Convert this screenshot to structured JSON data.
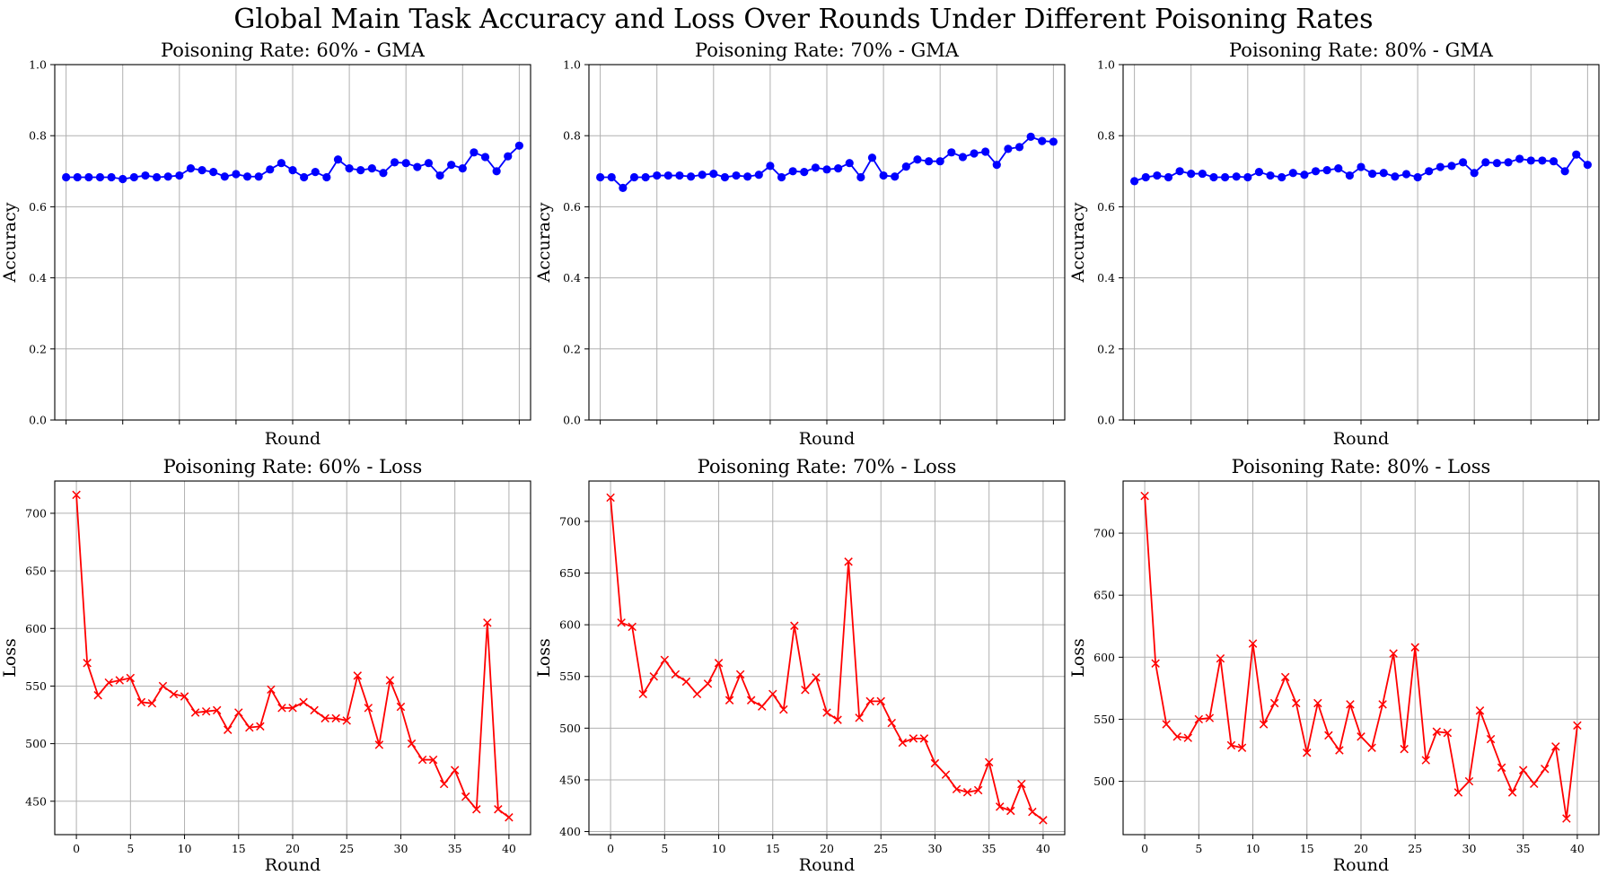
{
  "suptitle": "Global Main Task Accuracy and Loss Over Rounds Under Different Poisoning Rates",
  "colors": {
    "accuracy": "#0000ff",
    "loss": "#ff0000",
    "grid": "#b0b0b0"
  },
  "chart_data": [
    {
      "type": "line",
      "title": "Poisoning Rate: 60% - GMA",
      "xlabel": "Round",
      "ylabel": "Accuracy",
      "xlim": [
        -1,
        41
      ],
      "ylim": [
        0.0,
        1.0
      ],
      "xticks": [
        0,
        5,
        10,
        15,
        20,
        25,
        30,
        35,
        40
      ],
      "xtick_labels_shown": false,
      "yticks": [
        0.0,
        0.2,
        0.4,
        0.6,
        0.8,
        1.0
      ],
      "ytick_labels": [
        "0.0",
        "0.2",
        "0.4",
        "0.6",
        "0.8",
        "1.0"
      ],
      "marker": "circle",
      "color": "#0000ff",
      "grid": true,
      "x": [
        0,
        1,
        2,
        3,
        4,
        5,
        6,
        7,
        8,
        9,
        10,
        11,
        12,
        13,
        14,
        15,
        16,
        17,
        18,
        19,
        20,
        21,
        22,
        23,
        24,
        25,
        26,
        27,
        28,
        29,
        30,
        31,
        32,
        33,
        34,
        35,
        36,
        37,
        38,
        39,
        40
      ],
      "y": [
        0.683,
        0.683,
        0.683,
        0.683,
        0.683,
        0.678,
        0.683,
        0.688,
        0.683,
        0.685,
        0.688,
        0.708,
        0.703,
        0.698,
        0.685,
        0.692,
        0.685,
        0.685,
        0.705,
        0.723,
        0.703,
        0.683,
        0.698,
        0.683,
        0.733,
        0.708,
        0.703,
        0.708,
        0.695,
        0.725,
        0.723,
        0.712,
        0.723,
        0.688,
        0.718,
        0.708,
        0.753,
        0.74,
        0.7,
        0.742,
        0.772
      ]
    },
    {
      "type": "line",
      "title": "Poisoning Rate: 70% - GMA",
      "xlabel": "Round",
      "ylabel": "Accuracy",
      "xlim": [
        -1,
        41
      ],
      "ylim": [
        0.0,
        1.0
      ],
      "xticks": [
        0,
        5,
        10,
        15,
        20,
        25,
        30,
        35,
        40
      ],
      "xtick_labels_shown": false,
      "yticks": [
        0.0,
        0.2,
        0.4,
        0.6,
        0.8,
        1.0
      ],
      "ytick_labels": [
        "0.0",
        "0.2",
        "0.4",
        "0.6",
        "0.8",
        "1.0"
      ],
      "marker": "circle",
      "color": "#0000ff",
      "grid": true,
      "x": [
        0,
        1,
        2,
        3,
        4,
        5,
        6,
        7,
        8,
        9,
        10,
        11,
        12,
        13,
        14,
        15,
        16,
        17,
        18,
        19,
        20,
        21,
        22,
        23,
        24,
        25,
        26,
        27,
        28,
        29,
        30,
        31,
        32,
        33,
        34,
        35,
        36,
        37,
        38,
        39,
        40
      ],
      "y": [
        0.683,
        0.683,
        0.653,
        0.683,
        0.683,
        0.688,
        0.688,
        0.688,
        0.685,
        0.69,
        0.693,
        0.683,
        0.688,
        0.685,
        0.69,
        0.715,
        0.683,
        0.7,
        0.698,
        0.71,
        0.705,
        0.708,
        0.723,
        0.683,
        0.738,
        0.688,
        0.685,
        0.713,
        0.733,
        0.728,
        0.728,
        0.753,
        0.74,
        0.75,
        0.755,
        0.718,
        0.763,
        0.768,
        0.797,
        0.785,
        0.783
      ]
    },
    {
      "type": "line",
      "title": "Poisoning Rate: 80% - GMA",
      "xlabel": "Round",
      "ylabel": "Accuracy",
      "xlim": [
        -1,
        41
      ],
      "ylim": [
        0.0,
        1.0
      ],
      "xticks": [
        0,
        5,
        10,
        15,
        20,
        25,
        30,
        35,
        40
      ],
      "xtick_labels_shown": false,
      "yticks": [
        0.0,
        0.2,
        0.4,
        0.6,
        0.8,
        1.0
      ],
      "ytick_labels": [
        "0.0",
        "0.2",
        "0.4",
        "0.6",
        "0.8",
        "1.0"
      ],
      "marker": "circle",
      "color": "#0000ff",
      "grid": true,
      "x": [
        0,
        1,
        2,
        3,
        4,
        5,
        6,
        7,
        8,
        9,
        10,
        11,
        12,
        13,
        14,
        15,
        16,
        17,
        18,
        19,
        20,
        21,
        22,
        23,
        24,
        25,
        26,
        27,
        28,
        29,
        30,
        31,
        32,
        33,
        34,
        35,
        36,
        37,
        38,
        39,
        40
      ],
      "y": [
        0.672,
        0.683,
        0.688,
        0.683,
        0.7,
        0.693,
        0.693,
        0.683,
        0.683,
        0.685,
        0.683,
        0.698,
        0.688,
        0.683,
        0.695,
        0.69,
        0.7,
        0.703,
        0.708,
        0.688,
        0.712,
        0.693,
        0.695,
        0.685,
        0.692,
        0.683,
        0.7,
        0.712,
        0.715,
        0.725,
        0.695,
        0.725,
        0.723,
        0.725,
        0.735,
        0.73,
        0.73,
        0.728,
        0.7,
        0.747,
        0.718
      ]
    },
    {
      "type": "line",
      "title": "Poisoning Rate: 60% - Loss",
      "xlabel": "Round",
      "ylabel": "Loss",
      "xlim": [
        -2,
        42
      ],
      "ylim": [
        421,
        728
      ],
      "xticks": [
        0,
        5,
        10,
        15,
        20,
        25,
        30,
        35,
        40
      ],
      "xtick_labels": [
        "0",
        "5",
        "10",
        "15",
        "20",
        "25",
        "30",
        "35",
        "40"
      ],
      "yticks": [
        450,
        500,
        550,
        600,
        650,
        700
      ],
      "ytick_labels": [
        "450",
        "500",
        "550",
        "600",
        "650",
        "700"
      ],
      "marker": "x",
      "color": "#ff0000",
      "grid": true,
      "x": [
        0,
        1,
        2,
        3,
        4,
        5,
        6,
        7,
        8,
        9,
        10,
        11,
        12,
        13,
        14,
        15,
        16,
        17,
        18,
        19,
        20,
        21,
        22,
        23,
        24,
        25,
        26,
        27,
        28,
        29,
        30,
        31,
        32,
        33,
        34,
        35,
        36,
        37,
        38,
        39,
        40
      ],
      "y": [
        716,
        570,
        542,
        553,
        555,
        557,
        536,
        535,
        550,
        543,
        541,
        527,
        528,
        529,
        512,
        527,
        514,
        515,
        547,
        531,
        531,
        536,
        529,
        522,
        522,
        520,
        559,
        531,
        499,
        555,
        532,
        500,
        486,
        486,
        465,
        477,
        454,
        443,
        605,
        443,
        436
      ]
    },
    {
      "type": "line",
      "title": "Poisoning Rate: 70% - Loss",
      "xlabel": "Round",
      "ylabel": "Loss",
      "xlim": [
        -2,
        42
      ],
      "ylim": [
        397,
        739
      ],
      "xticks": [
        0,
        5,
        10,
        15,
        20,
        25,
        30,
        35,
        40
      ],
      "xtick_labels": [
        "0",
        "5",
        "10",
        "15",
        "20",
        "25",
        "30",
        "35",
        "40"
      ],
      "yticks": [
        400,
        450,
        500,
        550,
        600,
        650,
        700
      ],
      "ytick_labels": [
        "400",
        "450",
        "500",
        "550",
        "600",
        "650",
        "700"
      ],
      "marker": "x",
      "color": "#ff0000",
      "grid": true,
      "x": [
        0,
        1,
        2,
        3,
        4,
        5,
        6,
        7,
        8,
        9,
        10,
        11,
        12,
        13,
        14,
        15,
        16,
        17,
        18,
        19,
        20,
        21,
        22,
        23,
        24,
        25,
        26,
        27,
        28,
        29,
        30,
        31,
        32,
        33,
        34,
        35,
        36,
        37,
        38,
        39,
        40
      ],
      "y": [
        723,
        602,
        598,
        533,
        550,
        566,
        552,
        545,
        533,
        543,
        563,
        527,
        552,
        527,
        521,
        533,
        518,
        599,
        537,
        549,
        515,
        508,
        661,
        510,
        526,
        526,
        505,
        486,
        490,
        490,
        466,
        455,
        441,
        438,
        440,
        467,
        424,
        420,
        446,
        419,
        411
      ]
    },
    {
      "type": "line",
      "title": "Poisoning Rate: 80% - Loss",
      "xlabel": "Round",
      "ylabel": "Loss",
      "xlim": [
        -2,
        42
      ],
      "ylim": [
        457,
        742
      ],
      "xticks": [
        0,
        5,
        10,
        15,
        20,
        25,
        30,
        35,
        40
      ],
      "xtick_labels": [
        "0",
        "5",
        "10",
        "15",
        "20",
        "25",
        "30",
        "35",
        "40"
      ],
      "yticks": [
        500,
        550,
        600,
        650,
        700
      ],
      "ytick_labels": [
        "500",
        "550",
        "600",
        "650",
        "700"
      ],
      "marker": "x",
      "color": "#ff0000",
      "grid": true,
      "x": [
        0,
        1,
        2,
        3,
        4,
        5,
        6,
        7,
        8,
        9,
        10,
        11,
        12,
        13,
        14,
        15,
        16,
        17,
        18,
        19,
        20,
        21,
        22,
        23,
        24,
        25,
        26,
        27,
        28,
        29,
        30,
        31,
        32,
        33,
        34,
        35,
        36,
        37,
        38,
        39,
        40
      ],
      "y": [
        730,
        595,
        546,
        536,
        535,
        550,
        551,
        599,
        529,
        527,
        611,
        546,
        563,
        584,
        563,
        523,
        563,
        537,
        525,
        562,
        536,
        527,
        562,
        603,
        526,
        608,
        517,
        540,
        539,
        491,
        500,
        557,
        534,
        511,
        491,
        509,
        498,
        510,
        528,
        470,
        545
      ]
    }
  ]
}
